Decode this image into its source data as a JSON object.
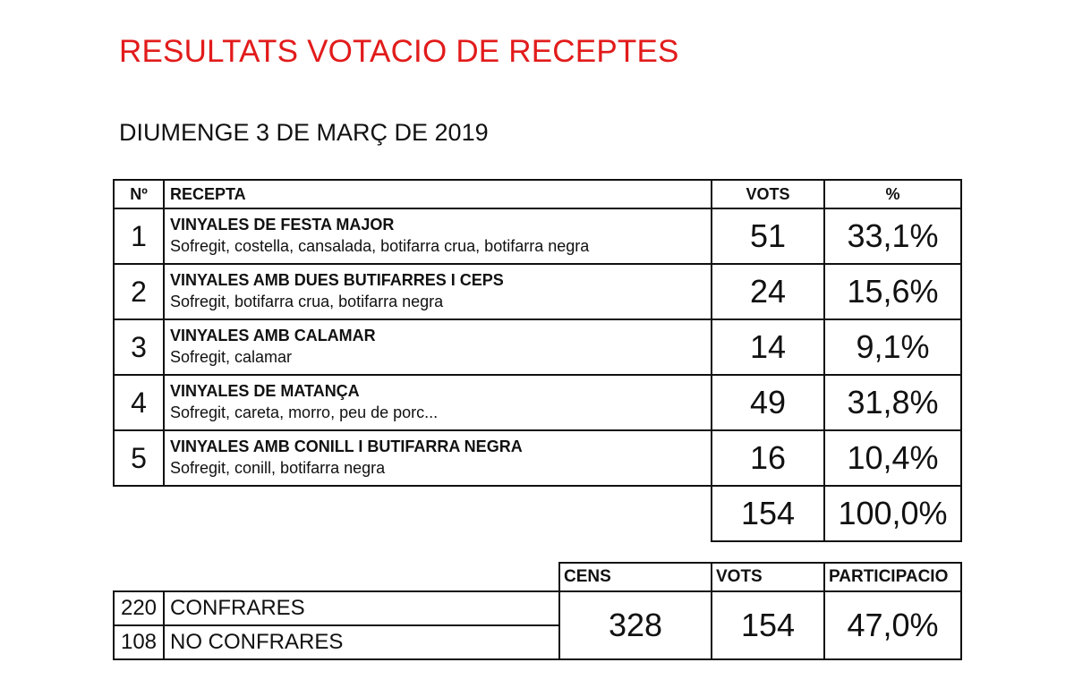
{
  "title": "RESULTATS VOTACIO DE RECEPTES",
  "date": "DIUMENGE 3 DE MARÇ DE 2019",
  "accent_color": "#e21b1b",
  "recipes_table": {
    "headers": {
      "num": "Nº",
      "recipe": "RECEPTA",
      "votes": "VOTS",
      "percent": "%"
    },
    "rows": [
      {
        "num": "1",
        "name": "VINYALES DE FESTA MAJOR",
        "desc": "Sofregit, costella, cansalada, botifarra crua, botifarra negra",
        "votes": "51",
        "percent": "33,1%"
      },
      {
        "num": "2",
        "name": "VINYALES AMB DUES BUTIFARRES I CEPS",
        "desc": "Sofregit, botifarra crua, botifarra negra",
        "votes": "24",
        "percent": "15,6%"
      },
      {
        "num": "3",
        "name": "VINYALES AMB CALAMAR",
        "desc": "Sofregit, calamar",
        "votes": "14",
        "percent": "9,1%"
      },
      {
        "num": "4",
        "name": "VINYALES DE MATANÇA",
        "desc": "Sofregit, careta, morro, peu de porc...",
        "votes": "49",
        "percent": "31,8%"
      },
      {
        "num": "5",
        "name": "VINYALES AMB CONILL I BUTIFARRA NEGRA",
        "desc": "Sofregit, conill, botifarra negra",
        "votes": "16",
        "percent": "10,4%"
      }
    ],
    "total": {
      "votes": "154",
      "percent": "100,0%"
    }
  },
  "census_table": {
    "headers": {
      "census": "CENS",
      "votes": "VOTS",
      "participation": "PARTICIPACIO"
    },
    "groups": [
      {
        "count": "220",
        "label": "CONFRARES"
      },
      {
        "count": "108",
        "label": "NO CONFRARES"
      }
    ],
    "census": "328",
    "votes": "154",
    "participation": "47,0%"
  }
}
